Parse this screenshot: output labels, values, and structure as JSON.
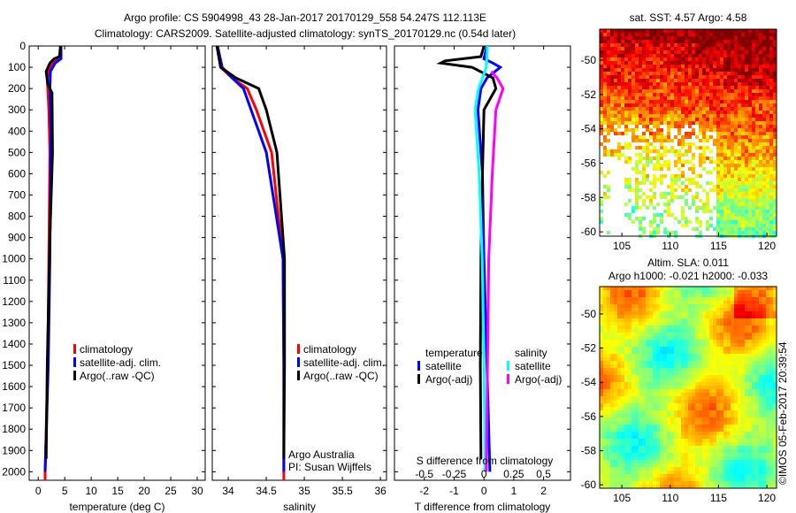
{
  "title_line1": "Argo profile: CS 5904998_43 28-Jan-2017 20170129_558 54.247S 112.113E",
  "title_line2": "Climatology: CARS2009. Satellite-adjusted climatology: synTS_20170129.nc (0.54d later)",
  "credit": "©IMOS 05-Feb-2017 20:39:54",
  "colors": {
    "climatology": "#ff0000",
    "satellite": "#0000ff",
    "argo": "#000000",
    "sal_satellite": "#00ffff",
    "sal_argo": "#ff00ff"
  },
  "chart_data": [
    {
      "type": "line",
      "id": "temperature",
      "xlabel": "temperature (deg C)",
      "ylabel": "",
      "xlim": [
        -1.7,
        31.5
      ],
      "ylim": [
        2040,
        0
      ],
      "xticks": [
        0,
        5,
        10,
        15,
        20,
        25,
        30
      ],
      "yticks": [
        0,
        100,
        200,
        300,
        400,
        500,
        600,
        700,
        800,
        900,
        1000,
        1100,
        1200,
        1300,
        1400,
        1500,
        1600,
        1700,
        1800,
        1900,
        2000
      ],
      "legend": [
        "climatology",
        "satellite-adj. clim.",
        "Argo(..raw -QC)"
      ],
      "series": [
        {
          "name": "climatology",
          "depth": [
            0,
            50,
            70,
            100,
            150,
            200,
            300,
            500,
            1000,
            1500,
            2000,
            2040
          ],
          "values": [
            4.2,
            4.2,
            3.0,
            2.2,
            1.7,
            1.8,
            2.0,
            2.2,
            2.0,
            1.8,
            1.3,
            1.3
          ]
        },
        {
          "name": "satellite-adj. clim.",
          "depth": [
            0,
            60,
            80,
            120,
            200,
            400,
            1000,
            1500,
            2000
          ],
          "values": [
            4.3,
            4.3,
            3.2,
            2.3,
            2.2,
            2.4,
            2.2,
            1.9,
            1.3
          ]
        },
        {
          "name": "Argo(..raw -QC)",
          "depth": [
            0,
            50,
            60,
            80,
            120,
            180,
            220,
            500,
            900,
            1500,
            1940
          ],
          "values": [
            4.2,
            4.0,
            3.0,
            2.2,
            1.5,
            1.8,
            2.6,
            2.7,
            2.2,
            1.7,
            1.5
          ]
        }
      ],
      "annotation": []
    },
    {
      "type": "line",
      "id": "salinity",
      "xlabel": "salinity",
      "xlim": [
        33.79,
        36.08
      ],
      "ylim": [
        2040,
        0
      ],
      "xticks": [
        34,
        34.5,
        35,
        35.5,
        36
      ],
      "legend": [
        "climatology",
        "satellite-adj. clim.",
        "Argo(..raw -QC)"
      ],
      "series": [
        {
          "name": "climatology",
          "depth": [
            0,
            100,
            150,
            200,
            300,
            500,
            1000,
            1500,
            2040
          ],
          "values": [
            33.85,
            33.9,
            34.05,
            34.25,
            34.37,
            34.57,
            34.72,
            34.73,
            34.73
          ]
        },
        {
          "name": "satellite-adj. clim.",
          "depth": [
            0,
            100,
            150,
            200,
            300,
            500,
            1000,
            1500,
            2000
          ],
          "values": [
            33.86,
            33.92,
            34.05,
            34.2,
            34.3,
            34.5,
            34.72,
            34.73,
            34.73
          ]
        },
        {
          "name": "Argo(..raw -QC)",
          "depth": [
            0,
            100,
            150,
            200,
            300,
            500,
            1000,
            1500,
            1940
          ],
          "values": [
            33.85,
            33.9,
            34.1,
            34.4,
            34.5,
            34.64,
            34.74,
            34.74,
            34.73
          ]
        }
      ],
      "annotation": [
        "Argo Australia",
        "PI: Susan Wijffels"
      ]
    },
    {
      "type": "line",
      "id": "difference",
      "xlabel": "T difference from climatology",
      "x2label": "S difference from climatology",
      "xlim": [
        -3.0,
        2.9
      ],
      "ylim": [
        2040,
        0
      ],
      "xticks": [
        -2,
        -1,
        0,
        1,
        2
      ],
      "x2ticks": [
        -0.5,
        -0.25,
        0,
        0.25,
        0.5
      ],
      "x2tick_labels": [
        "-0.5",
        "-0.25",
        "0",
        "0.25",
        "0.5"
      ],
      "legend_temperature": {
        "title": "temperature",
        "items": [
          "satellite",
          "Argo(-adj)"
        ]
      },
      "legend_salinity": {
        "title": "salinity",
        "items": [
          "satellite",
          "Argo(-adj)"
        ]
      },
      "series": [
        {
          "name": "T satellite",
          "units": "T",
          "depth": [
            0,
            60,
            80,
            100,
            150,
            200,
            300,
            600,
            1000,
            1500,
            2000
          ],
          "values": [
            0.1,
            0.0,
            0.3,
            0.55,
            0.1,
            -0.1,
            -0.2,
            -0.05,
            0.0,
            0.1,
            0.2
          ]
        },
        {
          "name": "T Argo(-adj)",
          "units": "T",
          "depth": [
            0,
            50,
            70,
            80,
            100,
            150,
            200,
            300,
            600,
            1000,
            1500,
            1940
          ],
          "values": [
            0.0,
            -0.1,
            -1.3,
            -1.45,
            -0.4,
            0.3,
            0.4,
            0.0,
            -0.05,
            -0.1,
            -0.12,
            -0.1
          ]
        },
        {
          "name": "S satellite",
          "units": "S",
          "depth": [
            0,
            100,
            200,
            300,
            600,
            1000,
            1500,
            2000
          ],
          "values": [
            0.03,
            0.02,
            -0.045,
            -0.075,
            -0.04,
            -0.015,
            0.0,
            0.01
          ]
        },
        {
          "name": "S Argo(-adj)",
          "units": "S",
          "depth": [
            120,
            150,
            200,
            300,
            600,
            1000,
            1500,
            2000
          ],
          "values": [
            0.06,
            0.11,
            0.16,
            0.1,
            0.07,
            0.04,
            0.03,
            0.02
          ]
        }
      ]
    },
    {
      "type": "heatmap",
      "id": "sst-map",
      "title": "sat. SST: 4.57  Argo: 4.58",
      "xlim": [
        102.7,
        121.0
      ],
      "ylim": [
        -60.25,
        -48.2
      ],
      "xticks": [
        105,
        110,
        115,
        120
      ],
      "yticks": [
        -50,
        -52,
        -54,
        -56,
        -58,
        -60
      ]
    },
    {
      "type": "heatmap",
      "id": "sla-map",
      "title": "Altim. SLA: 0.011",
      "subtitle": "Argo h1000: -0.021 h2000: -0.033",
      "xlim": [
        102.7,
        121.0
      ],
      "ylim": [
        -60.2,
        -48.4
      ],
      "xticks": [
        105,
        110,
        115,
        120
      ],
      "yticks": [
        -50,
        -52,
        -54,
        -56,
        -58,
        -60
      ]
    }
  ]
}
